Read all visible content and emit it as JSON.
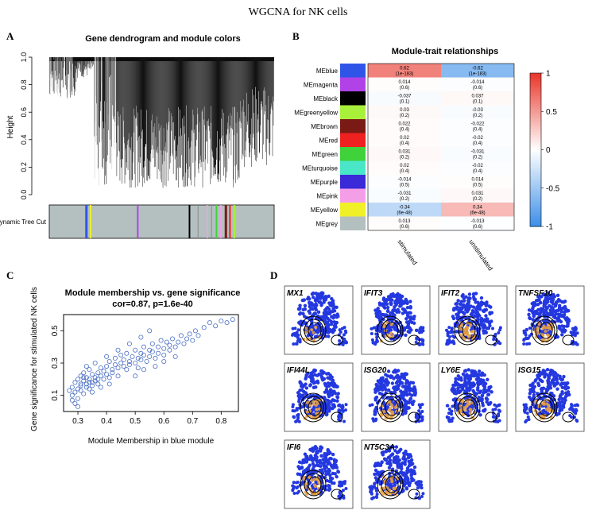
{
  "figure_title": "WGCNA for NK cells",
  "panel_labels": [
    "A",
    "B",
    "C",
    "D"
  ],
  "colors": {
    "heat_high": "#e8352a",
    "heat_low": "#3d8fe8",
    "heat_mid": "#ffffff",
    "scatter_point": "#4a6fc4",
    "umap_blue": "#2438e0",
    "umap_hot": "#e8a040"
  },
  "chart_data": [
    {
      "type": "dendrogram",
      "title": "Gene dendrogram and module colors",
      "ylabel": "Height",
      "yticks": [
        "0.0",
        "0.2",
        "0.4",
        "0.6",
        "0.8",
        "1.0"
      ],
      "ylim": [
        0,
        1
      ],
      "color_bar_label": "Dynamic Tree Cut"
    },
    {
      "type": "heatmap",
      "title": "Module-trait relationships",
      "columns": [
        "stimulated",
        "unstimulated"
      ],
      "rows": [
        {
          "module": "MEblue",
          "color": "#2f55e8",
          "values": [
            "0.62",
            "-0.62"
          ],
          "pvalues": [
            "(1e-183)",
            "(1e-183)"
          ],
          "r": [
            0.62,
            -0.62
          ]
        },
        {
          "module": "MEmagenta",
          "color": "#b042e8",
          "values": [
            "0.014",
            "-0.014"
          ],
          "pvalues": [
            "(0.6)",
            "(0.6)"
          ],
          "r": [
            0.014,
            -0.014
          ]
        },
        {
          "module": "MEblack",
          "color": "#000000",
          "values": [
            "-0.037",
            "0.037"
          ],
          "pvalues": [
            "(0.1)",
            "(0.1)"
          ],
          "r": [
            -0.037,
            0.037
          ]
        },
        {
          "module": "MEgreenyellow",
          "color": "#a8f03a",
          "values": [
            "0.03",
            "-0.03"
          ],
          "pvalues": [
            "(0.2)",
            "(0.2)"
          ],
          "r": [
            0.03,
            -0.03
          ]
        },
        {
          "module": "MEbrown",
          "color": "#7a1a14",
          "values": [
            "0.022",
            "-0.022"
          ],
          "pvalues": [
            "(0.4)",
            "(0.4)"
          ],
          "r": [
            0.022,
            -0.022
          ]
        },
        {
          "module": "MEred",
          "color": "#ee2020",
          "values": [
            "0.02",
            "-0.02"
          ],
          "pvalues": [
            "(0.4)",
            "(0.4)"
          ],
          "r": [
            0.02,
            -0.02
          ]
        },
        {
          "module": "MEgreen",
          "color": "#3fd23a",
          "values": [
            "0.031",
            "-0.031"
          ],
          "pvalues": [
            "(0.2)",
            "(0.2)"
          ],
          "r": [
            0.031,
            -0.031
          ]
        },
        {
          "module": "MEturquoise",
          "color": "#4ae6c8",
          "values": [
            "0.02",
            "-0.02"
          ],
          "pvalues": [
            "(0.4)",
            "(0.4)"
          ],
          "r": [
            0.02,
            -0.02
          ]
        },
        {
          "module": "MEpurple",
          "color": "#3a2ad8",
          "values": [
            "-0.014",
            "0.014"
          ],
          "pvalues": [
            "(0.5)",
            "(0.5)"
          ],
          "r": [
            -0.014,
            0.014
          ]
        },
        {
          "module": "MEpink",
          "color": "#f59ee8",
          "values": [
            "-0.031",
            "0.031"
          ],
          "pvalues": [
            "(0.2)",
            "(0.2)"
          ],
          "r": [
            -0.031,
            0.031
          ]
        },
        {
          "module": "MEyellow",
          "color": "#f0f028",
          "values": [
            "-0.34",
            "0.34"
          ],
          "pvalues": [
            "(6e-48)",
            "(6e-48)"
          ],
          "r": [
            -0.34,
            0.34
          ]
        },
        {
          "module": "MEgrey",
          "color": "#b4c0c0",
          "values": [
            "0.013",
            "-0.013"
          ],
          "pvalues": [
            "(0.6)",
            "(0.6)"
          ],
          "r": [
            0.013,
            -0.013
          ]
        }
      ],
      "legend_ticks": [
        "1",
        "0.5",
        "0",
        "-0.5",
        "-1"
      ],
      "legend_values": [
        1,
        0.5,
        0,
        -0.5,
        -1
      ],
      "range": [
        -1,
        1
      ]
    },
    {
      "type": "scatter",
      "title": "Module membership vs. gene significance",
      "subtitle": "cor=0.87, p=1.6e-40",
      "xlabel": "Module Membership in blue module",
      "ylabel": "Gene significance for stimulated NK cells",
      "xticks": [
        "0.3",
        "0.4",
        "0.5",
        "0.6",
        "0.7",
        "0.8"
      ],
      "xtick_values": [
        0.3,
        0.4,
        0.5,
        0.6,
        0.7,
        0.8
      ],
      "yticks": [
        "0.1",
        "0.3",
        "0.5"
      ],
      "ytick_values": [
        0.1,
        0.3,
        0.5
      ],
      "xlim": [
        0.25,
        0.86
      ],
      "ylim": [
        0.0,
        0.6
      ],
      "points": [
        [
          0.27,
          0.13
        ],
        [
          0.28,
          0.15
        ],
        [
          0.28,
          0.1
        ],
        [
          0.29,
          0.12
        ],
        [
          0.29,
          0.18
        ],
        [
          0.3,
          0.14
        ],
        [
          0.3,
          0.2
        ],
        [
          0.3,
          0.08
        ],
        [
          0.31,
          0.16
        ],
        [
          0.31,
          0.22
        ],
        [
          0.31,
          0.13
        ],
        [
          0.32,
          0.19
        ],
        [
          0.32,
          0.24
        ],
        [
          0.32,
          0.11
        ],
        [
          0.33,
          0.17
        ],
        [
          0.33,
          0.21
        ],
        [
          0.33,
          0.15
        ],
        [
          0.34,
          0.2
        ],
        [
          0.34,
          0.26
        ],
        [
          0.34,
          0.14
        ],
        [
          0.35,
          0.18
        ],
        [
          0.35,
          0.23
        ],
        [
          0.35,
          0.16
        ],
        [
          0.36,
          0.21
        ],
        [
          0.36,
          0.19
        ],
        [
          0.37,
          0.24
        ],
        [
          0.37,
          0.17
        ],
        [
          0.38,
          0.22
        ],
        [
          0.38,
          0.27
        ],
        [
          0.39,
          0.2
        ],
        [
          0.39,
          0.25
        ],
        [
          0.4,
          0.23
        ],
        [
          0.4,
          0.28
        ],
        [
          0.41,
          0.21
        ],
        [
          0.41,
          0.31
        ],
        [
          0.42,
          0.26
        ],
        [
          0.42,
          0.24
        ],
        [
          0.43,
          0.29
        ],
        [
          0.43,
          0.33
        ],
        [
          0.44,
          0.27
        ],
        [
          0.44,
          0.22
        ],
        [
          0.45,
          0.3
        ],
        [
          0.45,
          0.35
        ],
        [
          0.46,
          0.28
        ],
        [
          0.46,
          0.32
        ],
        [
          0.47,
          0.26
        ],
        [
          0.47,
          0.36
        ],
        [
          0.48,
          0.31
        ],
        [
          0.48,
          0.29
        ],
        [
          0.49,
          0.34
        ],
        [
          0.5,
          0.3
        ],
        [
          0.5,
          0.38
        ],
        [
          0.51,
          0.33
        ],
        [
          0.51,
          0.27
        ],
        [
          0.52,
          0.36
        ],
        [
          0.52,
          0.32
        ],
        [
          0.53,
          0.4
        ],
        [
          0.53,
          0.35
        ],
        [
          0.54,
          0.31
        ],
        [
          0.55,
          0.38
        ],
        [
          0.55,
          0.34
        ],
        [
          0.56,
          0.42
        ],
        [
          0.56,
          0.37
        ],
        [
          0.57,
          0.33
        ],
        [
          0.58,
          0.4
        ],
        [
          0.58,
          0.36
        ],
        [
          0.59,
          0.44
        ],
        [
          0.6,
          0.39
        ],
        [
          0.6,
          0.35
        ],
        [
          0.61,
          0.43
        ],
        [
          0.62,
          0.38
        ],
        [
          0.62,
          0.41
        ],
        [
          0.63,
          0.45
        ],
        [
          0.64,
          0.4
        ],
        [
          0.65,
          0.43
        ],
        [
          0.66,
          0.47
        ],
        [
          0.67,
          0.42
        ],
        [
          0.68,
          0.45
        ],
        [
          0.69,
          0.48
        ],
        [
          0.7,
          0.44
        ],
        [
          0.71,
          0.5
        ],
        [
          0.72,
          0.47
        ],
        [
          0.74,
          0.52
        ],
        [
          0.76,
          0.55
        ],
        [
          0.78,
          0.53
        ],
        [
          0.8,
          0.56
        ],
        [
          0.82,
          0.55
        ],
        [
          0.84,
          0.57
        ],
        [
          0.33,
          0.28
        ],
        [
          0.36,
          0.3
        ],
        [
          0.4,
          0.34
        ],
        [
          0.44,
          0.38
        ],
        [
          0.48,
          0.42
        ],
        [
          0.52,
          0.46
        ],
        [
          0.55,
          0.5
        ],
        [
          0.29,
          0.05
        ],
        [
          0.3,
          0.03
        ],
        [
          0.28,
          0.07
        ],
        [
          0.35,
          0.12
        ],
        [
          0.38,
          0.15
        ],
        [
          0.41,
          0.17
        ],
        [
          0.5,
          0.22
        ],
        [
          0.53,
          0.26
        ],
        [
          0.57,
          0.28
        ],
        [
          0.6,
          0.31
        ],
        [
          0.64,
          0.34
        ],
        [
          0.31,
          0.17
        ],
        [
          0.32,
          0.21
        ],
        [
          0.34,
          0.18
        ],
        [
          0.37,
          0.2
        ]
      ]
    },
    {
      "type": "feature_plots",
      "genes": [
        "MX1",
        "IFIT3",
        "IFIT2",
        "TNFSF10",
        "IFI44L",
        "ISG20",
        "LY6E",
        "ISG15",
        "IFI6",
        "NT5C3A"
      ]
    }
  ]
}
